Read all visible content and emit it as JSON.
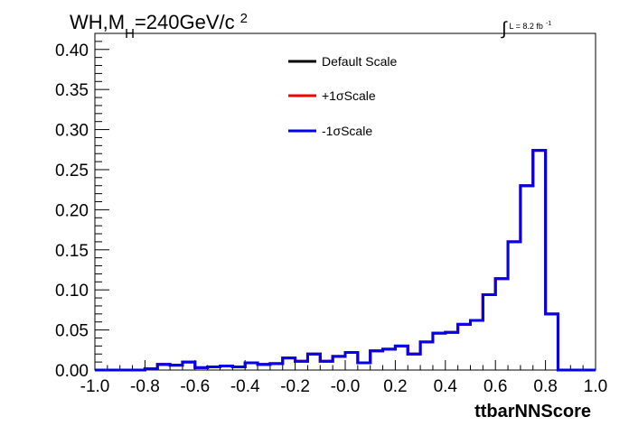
{
  "chart_data": {
    "type": "line",
    "title": {
      "main": "WH,M",
      "subscript": "H",
      "rest": "=240GeV/c",
      "superscript": "2"
    },
    "luminosity": {
      "integral_symbol": "∫",
      "text": "L = 8.2 fb",
      "superscript": "-1"
    },
    "xlabel": "ttbarNNScore",
    "ylabel": "",
    "xlim": [
      -1.0,
      1.0
    ],
    "ylim": [
      0.0,
      0.42
    ],
    "x_ticks": [
      "-1.0",
      "-0.8",
      "-0.6",
      "-0.4",
      "-0.2",
      "-0.0",
      "0.2",
      "0.4",
      "0.6",
      "0.8",
      "1.0"
    ],
    "y_ticks": [
      "0.00",
      "0.05",
      "0.10",
      "0.15",
      "0.20",
      "0.25",
      "0.30",
      "0.35",
      "0.40"
    ],
    "bin_edges_start": -1.0,
    "bin_width": 0.05,
    "series": [
      {
        "name": "Default Scale",
        "color": "#000000",
        "values": [
          0.0,
          0.0,
          0.0,
          0.0,
          0.0015,
          0.007,
          0.006,
          0.01,
          0.003,
          0.004,
          0.005,
          0.004,
          0.009,
          0.007,
          0.008,
          0.015,
          0.011,
          0.02,
          0.011,
          0.017,
          0.022,
          0.009,
          0.024,
          0.026,
          0.03,
          0.02,
          0.035,
          0.046,
          0.047,
          0.057,
          0.062,
          0.094,
          0.114,
          0.16,
          0.23,
          0.274,
          0.07,
          0.0,
          0.0,
          0.0
        ]
      },
      {
        "name": "+1σScale",
        "color": "#ff0000",
        "values": [
          0.0,
          0.0,
          0.0,
          0.0,
          0.0015,
          0.007,
          0.006,
          0.01,
          0.003,
          0.004,
          0.005,
          0.004,
          0.009,
          0.007,
          0.008,
          0.015,
          0.011,
          0.02,
          0.011,
          0.017,
          0.022,
          0.009,
          0.024,
          0.026,
          0.03,
          0.02,
          0.035,
          0.046,
          0.047,
          0.057,
          0.062,
          0.094,
          0.114,
          0.16,
          0.23,
          0.274,
          0.07,
          0.0,
          0.0,
          0.0
        ]
      },
      {
        "name": "-1σScale",
        "color": "#0000ee",
        "values": [
          0.0,
          0.0,
          0.0,
          0.0,
          0.0015,
          0.007,
          0.006,
          0.01,
          0.003,
          0.004,
          0.005,
          0.004,
          0.009,
          0.007,
          0.008,
          0.015,
          0.011,
          0.02,
          0.011,
          0.017,
          0.022,
          0.009,
          0.024,
          0.026,
          0.03,
          0.02,
          0.035,
          0.046,
          0.047,
          0.057,
          0.062,
          0.094,
          0.114,
          0.16,
          0.23,
          0.274,
          0.07,
          0.0,
          0.0,
          0.0
        ]
      }
    ],
    "legend_placement": "top-center",
    "grid": false
  }
}
